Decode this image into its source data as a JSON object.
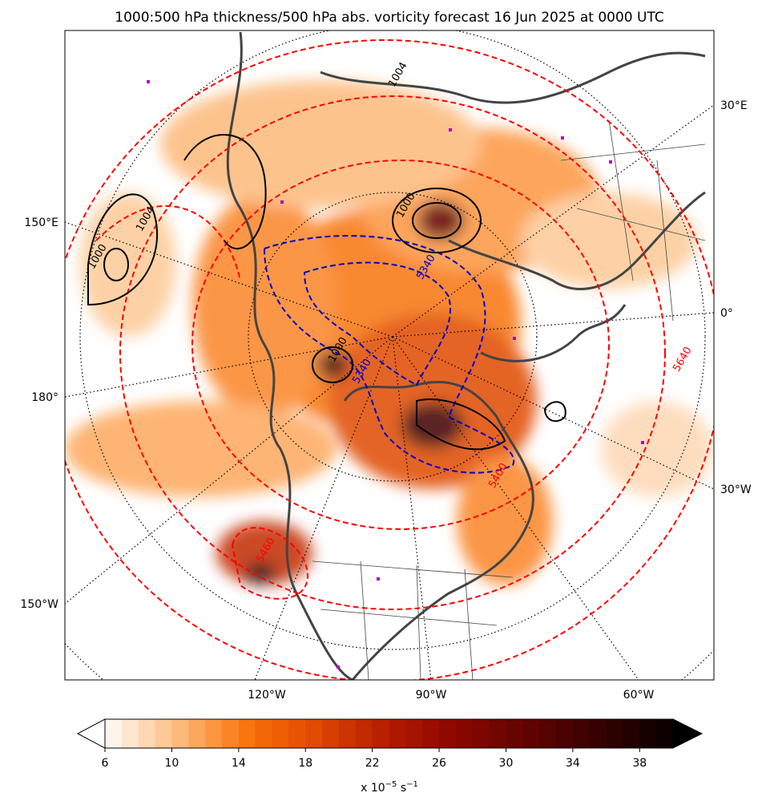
{
  "header": {
    "title": "1000:500 hPa thickness/500 hPa abs. vorticity forecast 16 Jun 2025 at 0000 UTC"
  },
  "map": {
    "left_labels": [
      "150°E",
      "180°",
      "150°W"
    ],
    "right_labels": [
      "30°E",
      "0°",
      "30°W"
    ],
    "bottom_labels": [
      "120°W",
      "90°W",
      "60°W"
    ],
    "contour_labels": [
      {
        "text": "1000",
        "color": "#000000"
      },
      {
        "text": "1004",
        "color": "#000000"
      },
      {
        "text": "1004",
        "color": "#000000"
      },
      {
        "text": "1000",
        "color": "#000000"
      },
      {
        "text": "1000",
        "color": "#000000"
      },
      {
        "text": "5340",
        "color": "#0000cc"
      },
      {
        "text": "5340",
        "color": "#0000cc"
      },
      {
        "text": "5400",
        "color": "#ff0000"
      },
      {
        "text": "5460",
        "color": "#ff0000"
      },
      {
        "text": "5640",
        "color": "#ff0000"
      }
    ]
  },
  "colorbar": {
    "range": [
      6,
      40
    ],
    "ticks": [
      6,
      10,
      14,
      18,
      22,
      26,
      30,
      34,
      38
    ],
    "colors": [
      "#fff4ea",
      "#fee6cf",
      "#fed7b3",
      "#fdc996",
      "#fdb97a",
      "#fda75c",
      "#fd9641",
      "#fb8426",
      "#f87510",
      "#f26806",
      "#ee5d04",
      "#e85403",
      "#e04a02",
      "#d63f01",
      "#cc3401",
      "#c22a00",
      "#b82000",
      "#ae1800",
      "#a41200",
      "#9a0d00",
      "#900900",
      "#860700",
      "#7c0600",
      "#720500",
      "#680400",
      "#5e0300",
      "#540300",
      "#4a0200",
      "#400200",
      "#360100",
      "#2c0100",
      "#220100",
      "#180000",
      "#0e0000"
    ],
    "label": {
      "prefix": "x 10",
      "exponent": "−5",
      "unit": " s",
      "unit_exponent": "−1"
    }
  }
}
